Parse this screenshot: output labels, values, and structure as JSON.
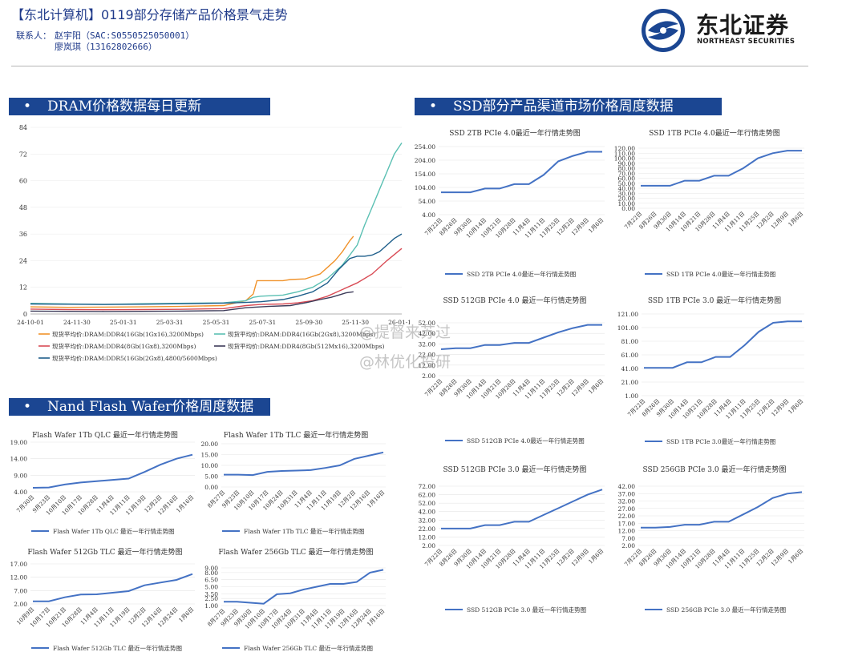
{
  "header": {
    "title": "【东北计算机】0119部分存储产品价格景气走势",
    "contact_label": "联系人：",
    "contact1": "赵宇阳（SAC:S0550525050001）",
    "contact2": "廖岚琪（13162802666）",
    "logo_cn": "东北证券",
    "logo_en": "NORTHEAST SECURITIES"
  },
  "sections": {
    "dram": "DRAM价格数据每日更新",
    "ssd": "SSD部分产品渠道市场价格周度数据",
    "nand": "Nand Flash Wafer价格周度数据"
  },
  "bullet": "•",
  "watermark": {
    "line1": "@提督来苏过",
    "line2": "@林优化投研"
  },
  "colors": {
    "accent": "#1b4692",
    "line": "#4472c4"
  },
  "chart_data": [
    {
      "id": "dram",
      "type": "line",
      "x_ticks": [
        "24-10-01",
        "24-11-30",
        "25-01-31",
        "25-03-31",
        "25-05-31",
        "25-07-31",
        "25-09-30",
        "25-11-30",
        "26-01-18"
      ],
      "ylim": [
        0,
        84
      ],
      "y_ticks": [
        "0",
        "12",
        "24",
        "36",
        "48",
        "60",
        "72",
        "84"
      ],
      "series": [
        {
          "name": "现货平均价:DRAM:DDR4(16Gb(1Gx16),3200Mbps)",
          "color": "#f0922a",
          "x": [
            0,
            0.1,
            0.2,
            0.3,
            0.4,
            0.52,
            0.58,
            0.6,
            0.61,
            0.68,
            0.7,
            0.74,
            0.78,
            0.8,
            0.82,
            0.84,
            0.86,
            0.87
          ],
          "y": [
            3.2,
            3.0,
            3.1,
            3.2,
            3.4,
            3.8,
            6,
            9,
            15,
            15,
            15.5,
            15.8,
            18,
            21,
            24,
            28,
            33,
            35
          ]
        },
        {
          "name": "现货平均价:DRAM:DDR4(16Gb(2Gx8),3200Mbps)",
          "color": "#5bc0b3",
          "x": [
            0,
            0.1,
            0.2,
            0.3,
            0.4,
            0.52,
            0.58,
            0.6,
            0.62,
            0.68,
            0.72,
            0.76,
            0.8,
            0.84,
            0.88,
            0.9,
            0.92,
            0.94,
            0.96,
            0.98,
            1.0
          ],
          "y": [
            4.8,
            4.5,
            4.3,
            4.6,
            4.8,
            5.0,
            6,
            7.5,
            8,
            8.5,
            10,
            12,
            16,
            22,
            31,
            40,
            48,
            56,
            64,
            72,
            77
          ]
        },
        {
          "name": "现货平均价:DRAM:DDR4(8Gb(1Gx8),3200Mbps)",
          "color": "#d94b55",
          "x": [
            0,
            0.1,
            0.2,
            0.3,
            0.4,
            0.52,
            0.58,
            0.62,
            0.68,
            0.72,
            0.76,
            0.8,
            0.84,
            0.88,
            0.92,
            0.96,
            1.0
          ],
          "y": [
            2.2,
            2.0,
            1.9,
            2.0,
            2.1,
            2.4,
            3.8,
            4.3,
            4.5,
            5,
            6,
            8,
            11,
            14,
            18,
            24,
            29.5
          ]
        },
        {
          "name": "现货平均价:DRAM:DDR4(8Gb(512Mx16),3200Mbps)",
          "color": "#3d3b59",
          "x": [
            0,
            0.1,
            0.2,
            0.3,
            0.4,
            0.52,
            0.58,
            0.64,
            0.7,
            0.74,
            0.78,
            0.81,
            0.83,
            0.85,
            0.87
          ],
          "y": [
            1.3,
            1.2,
            1.1,
            1.2,
            1.3,
            1.5,
            2.8,
            3.4,
            3.8,
            5,
            6.5,
            7.5,
            8.5,
            9.5,
            10
          ]
        },
        {
          "name": "现货平均价:DRAM:DDR5(16Gb(2Gx8),4800/5600Mbps)",
          "color": "#1f5f8b",
          "x": [
            0,
            0.1,
            0.2,
            0.3,
            0.4,
            0.52,
            0.58,
            0.62,
            0.68,
            0.72,
            0.76,
            0.8,
            0.83,
            0.86,
            0.88,
            0.9,
            0.92,
            0.94,
            0.96,
            0.98,
            1.0
          ],
          "y": [
            4.5,
            4.4,
            4.3,
            4.4,
            4.6,
            4.9,
            5.2,
            5.5,
            6.5,
            8,
            10,
            14,
            20,
            25,
            26,
            26,
            26.5,
            28,
            31,
            34,
            36
          ]
        }
      ]
    },
    {
      "id": "ssd2tb4",
      "type": "line",
      "title": "SSD 2TB PCIe 4.0最近一年行情走势图",
      "legend": "SSD 2TB PCIe 4.0最近一年行情走势图",
      "y_ticks": [
        "4.00",
        "54.00",
        "104.00",
        "154.00",
        "204.00",
        "254.00"
      ],
      "ylim": [
        4,
        254
      ],
      "x": [
        "7月22日",
        "8月26日",
        "9月30日",
        "10月14日",
        "10月21日",
        "10月28日",
        "11月4日",
        "11月11日",
        "11月25日",
        "12月2日",
        "12月9日",
        "1月6日"
      ],
      "values": [
        86,
        86,
        86,
        100,
        100,
        116,
        116,
        150,
        200,
        220,
        235,
        235
      ]
    },
    {
      "id": "ssd1tb4",
      "type": "line",
      "title": "SSD 1TB PCIe 4.0最近一年行情走势图",
      "legend": "SSD 1TB PCIe 4.0最近一年行情走势图",
      "y_ticks": [
        "0.00",
        "10.00",
        "20.00",
        "30.00",
        "40.00",
        "50.00",
        "60.00",
        "70.00",
        "80.00",
        "90.00",
        "100.00",
        "110.00",
        "120.00"
      ],
      "ylim": [
        0,
        120
      ],
      "x": [
        "7月22日",
        "8月26日",
        "9月30日",
        "10月14日",
        "10月21日",
        "10月28日",
        "11月4日",
        "11月11日",
        "11月25日",
        "12月2日",
        "12月9日",
        "1月6日"
      ],
      "values": [
        45,
        45,
        45,
        55,
        55,
        65,
        65,
        80,
        100,
        110,
        115,
        115
      ]
    },
    {
      "id": "ssd512g4",
      "type": "line",
      "title": "SSD 512GB PCIe 4.0 最近一年行情走势图",
      "legend": "SSD 512GB PCIe 4.0最近一年行情走势图",
      "y_ticks": [
        "2.00",
        "12.00",
        "22.00",
        "32.00",
        "42.00",
        "52.00"
      ],
      "ylim": [
        2,
        52
      ],
      "x": [
        "7月22日",
        "8月26日",
        "9月30日",
        "10月14日",
        "10月21日",
        "10月28日",
        "11月4日",
        "11月11日",
        "11月25日",
        "12月2日",
        "12月9日",
        "1月6日"
      ],
      "values": [
        27,
        28,
        28,
        31,
        31,
        33,
        33,
        38,
        43,
        47,
        50,
        50
      ]
    },
    {
      "id": "ssd1tb3",
      "type": "line",
      "title": "SSD 1TB PCIe 3.0 最近一年行情走势图",
      "legend": "SSD 1TB PCIe 3.0最近一年行情走势图",
      "y_ticks": [
        "1.00",
        "21.00",
        "41.00",
        "61.00",
        "81.00",
        "101.00",
        "121.00"
      ],
      "ylim": [
        1,
        121
      ],
      "x": [
        "7月22日",
        "8月26日",
        "9月30日",
        "10月14日",
        "10月21日",
        "10月28日",
        "11月4日",
        "11月11日",
        "11月25日",
        "12月2日",
        "12月9日",
        "1月6日"
      ],
      "values": [
        42,
        42,
        42,
        50,
        50,
        58,
        58,
        75,
        95,
        108,
        110,
        110
      ]
    },
    {
      "id": "ssd512g3",
      "type": "line",
      "title": "SSD 512GB PCIe 3.0 最近一年行情走势图",
      "legend": "SSD 512GB PCIe 3.0 最近一年行情走势图",
      "y_ticks": [
        "2.00",
        "12.00",
        "22.00",
        "32.00",
        "42.00",
        "52.00",
        "62.00",
        "72.00"
      ],
      "ylim": [
        2,
        72
      ],
      "x": [
        "7月22日",
        "8月26日",
        "9月30日",
        "10月14日",
        "10月21日",
        "10月28日",
        "11月4日",
        "11月11日",
        "11月25日",
        "12月2日",
        "12月9日",
        "1月6日"
      ],
      "values": [
        22,
        22,
        22,
        26,
        26,
        30,
        30,
        38,
        46,
        54,
        62,
        68
      ]
    },
    {
      "id": "ssd256g3",
      "type": "line",
      "title": "SSD 256GB PCIe 3.0 最近一年行情走势图",
      "legend": "SSD 256GB PCIe 3.0 最近一年行情走势图",
      "y_ticks": [
        "2.00",
        "7.00",
        "12.00",
        "17.00",
        "22.00",
        "27.00",
        "32.00",
        "37.00",
        "42.00"
      ],
      "ylim": [
        2,
        42
      ],
      "x": [
        "7月22日",
        "8月26日",
        "9月30日",
        "10月14日",
        "10月21日",
        "10月28日",
        "11月4日",
        "11月11日",
        "11月25日",
        "12月2日",
        "12月9日",
        "1月6日"
      ],
      "values": [
        14,
        14,
        14.5,
        16,
        16,
        18,
        18,
        23,
        28,
        34,
        37,
        38
      ]
    },
    {
      "id": "qlc1tb",
      "type": "line",
      "title": "Flash Wafer 1Tb QLC 最近一年行情走势图",
      "legend": "Flash Wafer 1Tb QLC 最近一年行情走势图",
      "y_ticks": [
        "4.00",
        "9.00",
        "14.00",
        "19.00"
      ],
      "ylim": [
        4,
        19
      ],
      "x": [
        "7月30日",
        "9月23日",
        "10月10日",
        "10月17日",
        "10月28日",
        "11月4日",
        "11月11日",
        "11月19日",
        "12月2日",
        "12月16日",
        "1月16日"
      ],
      "values": [
        5.2,
        5.3,
        6.2,
        6.8,
        7.2,
        7.6,
        8.0,
        10.0,
        12.2,
        14.0,
        15.2
      ]
    },
    {
      "id": "tlc1tb",
      "type": "line",
      "title": "Flash Wafer 1Tb TLC 最近一年行情走势图",
      "legend": "Flash Wafer 1Tb TLC 最近一年行情走势图",
      "y_ticks": [
        "0.00",
        "5.00",
        "10.00",
        "15.00",
        "20.00"
      ],
      "ylim": [
        0,
        20
      ],
      "x": [
        "8月27日",
        "9月23日",
        "10月10日",
        "10月17日",
        "10月24日",
        "10月31日",
        "11月4日",
        "11月11日",
        "11月19日",
        "12月2日",
        "12月16日",
        "1月16日"
      ],
      "values": [
        5.7,
        5.7,
        5.5,
        7,
        7.4,
        7.6,
        7.8,
        8.8,
        10,
        13,
        14.5,
        16
      ]
    },
    {
      "id": "tlc512gb",
      "type": "line",
      "title": "Flash Wafer 512Gb TLC 最近一年行情走势图",
      "legend": "Flash Wafer 512Gb TLC 最近一年行情走势图",
      "y_ticks": [
        "2.00",
        "7.00",
        "12.00",
        "17.00"
      ],
      "ylim": [
        2,
        17
      ],
      "x": [
        "10月9日",
        "10月17日",
        "10月21日",
        "10月28日",
        "11月4日",
        "11月11日",
        "11月19日",
        "12月2日",
        "12月16日",
        "12月24日",
        "1月6日"
      ],
      "values": [
        3,
        3,
        4.5,
        5.5,
        5.6,
        6.2,
        6.8,
        9,
        10,
        11,
        13.2
      ]
    },
    {
      "id": "tlc256gb",
      "type": "line",
      "title": "Flash Wafer 256Gb TLC 最近一年行情走势图",
      "legend": "Flash Wafer 256Gb TLC 最近一年行情走势图",
      "y_ticks": [
        "1.00",
        "2.50",
        "3.50",
        "5.00",
        "6.50",
        "8.00",
        "9.00"
      ],
      "ylim": [
        1,
        9
      ],
      "x": [
        "8月27日",
        "9月23日",
        "9月30日",
        "10月10日",
        "10月17日",
        "10月24日",
        "10月31日",
        "11月4日",
        "11月11日",
        "11月19日",
        "12月16日",
        "12月24日",
        "1月16日"
      ],
      "values": [
        1.8,
        1.8,
        1.6,
        1.4,
        3.4,
        3.6,
        4.4,
        5.0,
        5.6,
        5.6,
        6,
        8,
        8.6
      ]
    }
  ]
}
